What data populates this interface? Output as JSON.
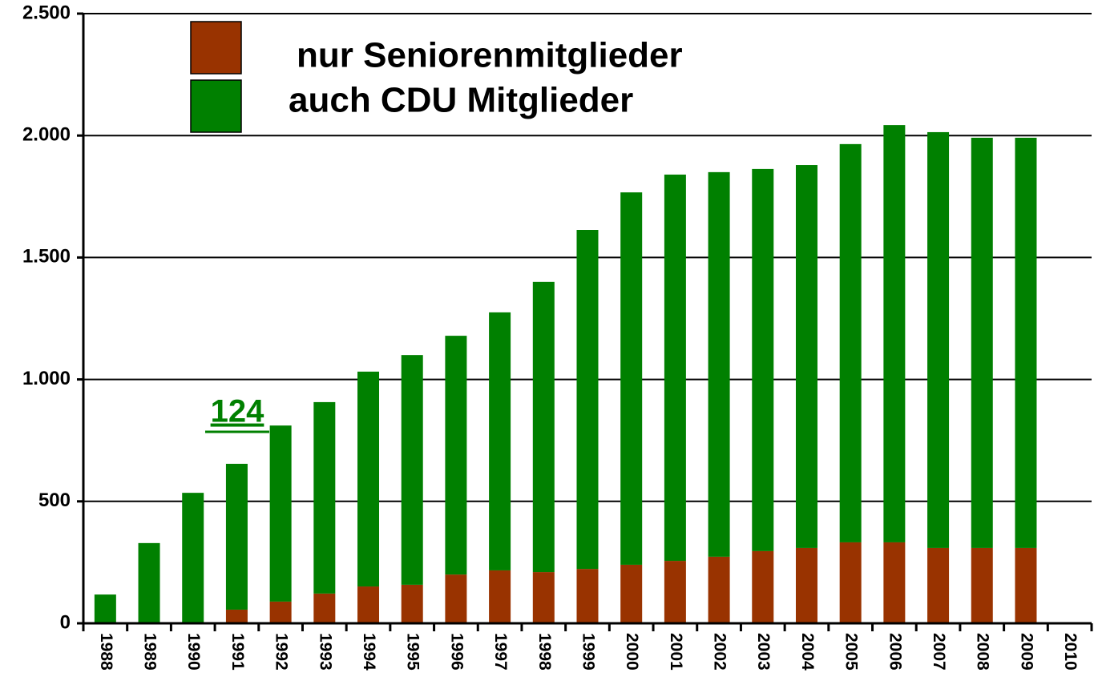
{
  "chart_data": {
    "type": "bar",
    "stacked": true,
    "annotation": "124",
    "categories": [
      "1988",
      "1989",
      "1990",
      "1991",
      "1992",
      "1993",
      "1994",
      "1995",
      "1996",
      "1997",
      "1998",
      "1999",
      "2000",
      "2001",
      "2002",
      "2003",
      "2004",
      "2005",
      "2006",
      "2007",
      "2008",
      "2009",
      "2010"
    ],
    "series": [
      {
        "name": "nur Seniorenmitglieder",
        "color": "#993300",
        "values": [
          0,
          0,
          0,
          56,
          89,
          122,
          151,
          158,
          200,
          217,
          210,
          223,
          240,
          256,
          273,
          296,
          309,
          332,
          332,
          309,
          309,
          309,
          null
        ]
      },
      {
        "name": "auch CDU Mitglieder",
        "color": "#008000",
        "values": [
          118,
          329,
          535,
          598,
          722,
          785,
          881,
          942,
          979,
          1058,
          1190,
          1390,
          1527,
          1584,
          1577,
          1567,
          1570,
          1633,
          1711,
          1705,
          1682,
          1682,
          null
        ]
      }
    ],
    "ylim": [
      0,
      2500
    ],
    "yticks": [
      0,
      500,
      {
        "value": 1000,
        "label": "1.000"
      },
      {
        "value": 1500,
        "label": "1.500"
      },
      {
        "value": 2000,
        "label": "2.000"
      },
      {
        "value": 2500,
        "label": "2.500"
      }
    ],
    "grid": true
  }
}
